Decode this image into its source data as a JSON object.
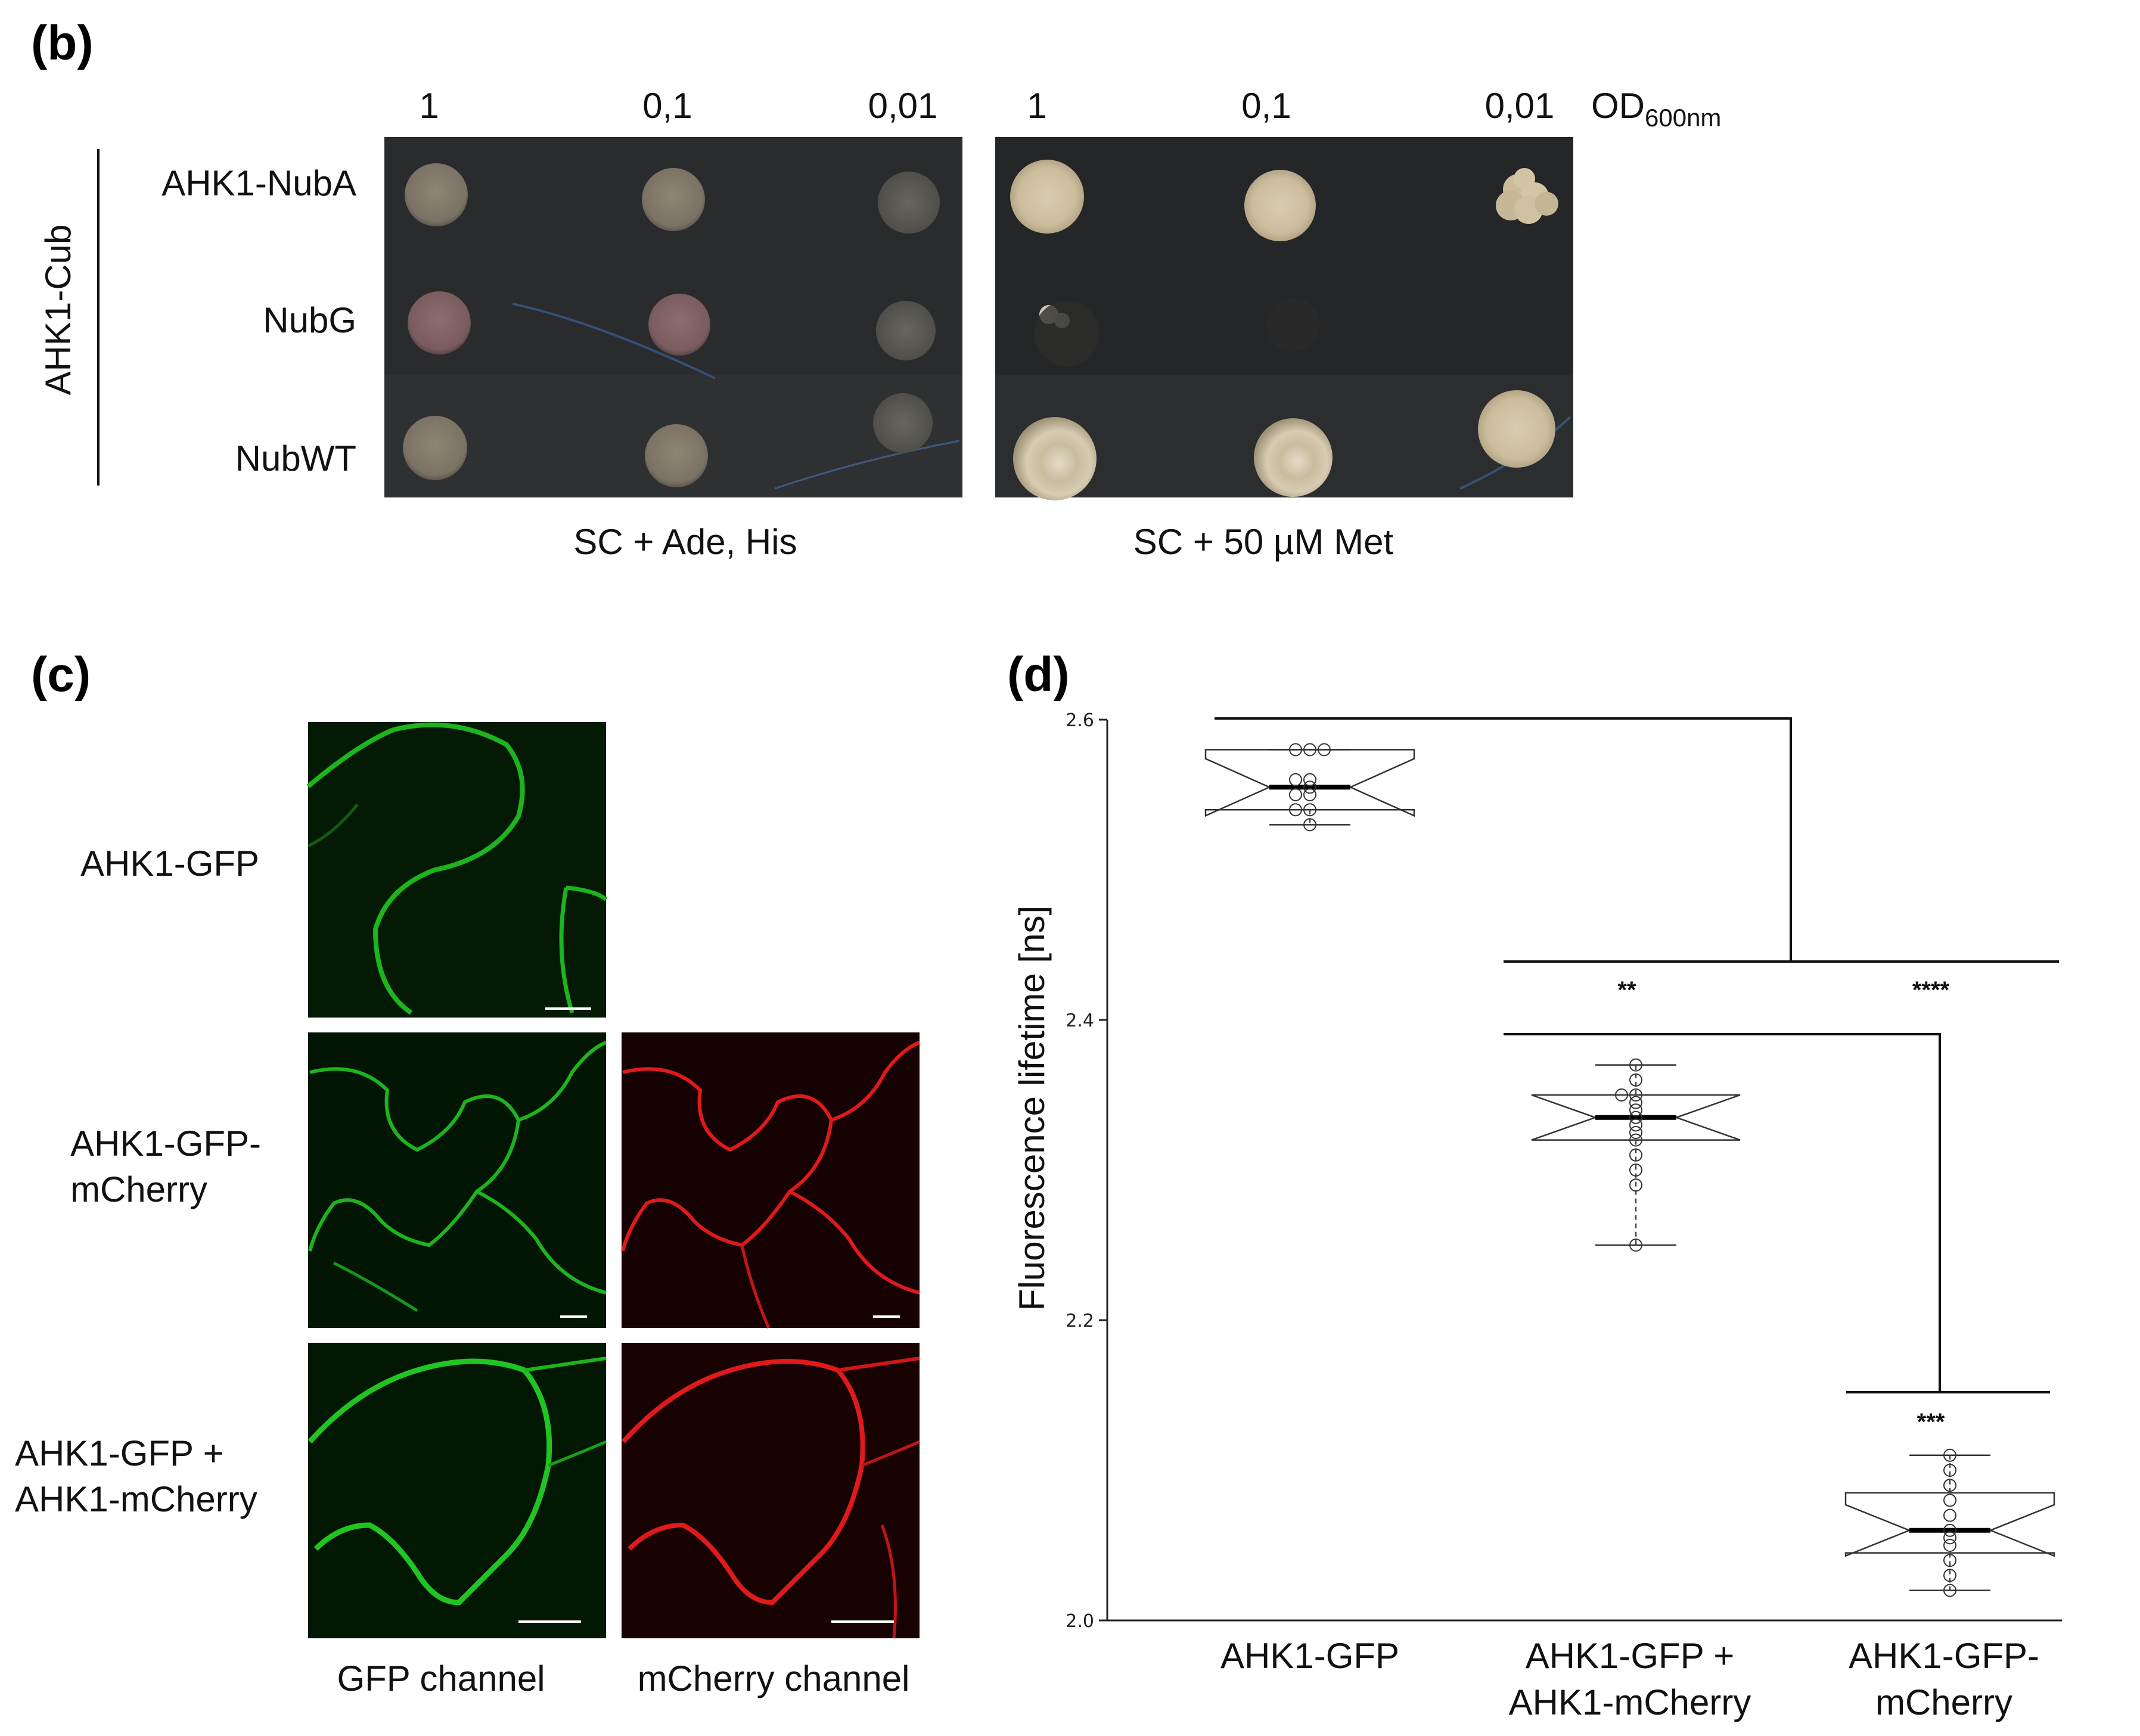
{
  "panel_b": {
    "letter": "(b)",
    "side_label": "AHK1-Cub",
    "dilutions": [
      "1",
      "0,1",
      "0,01"
    ],
    "od_label": "OD",
    "od_sub": "600nm",
    "rows": [
      "AHK1-NubA",
      "NubG",
      "NubWT"
    ],
    "medium_left": "SC + Ade, His",
    "medium_right": "SC + 50 µM Met"
  },
  "panel_c": {
    "letter": "(c)",
    "row1_label": [
      "AHK1-GFP"
    ],
    "row2_label": [
      "AHK1-GFP-",
      "mCherry"
    ],
    "row3_label": [
      "AHK1-GFP +",
      "AHK1-mCherry"
    ],
    "col_gfp": "GFP channel",
    "col_mcherry": "mCherry channel",
    "colors": {
      "gfp": "#1db41d",
      "mcherry": "#e01a1a"
    }
  },
  "panel_d": {
    "letter": "(d)",
    "ylabel": "Fluorescence lifetime [ns]",
    "stars": [
      "**",
      "****",
      "***"
    ]
  },
  "chart_data": {
    "type": "box",
    "xlabel": "",
    "ylabel": "Fluorescence lifetime [ns]",
    "ylim": [
      2.0,
      2.6
    ],
    "yticks": [
      "2.0",
      "2.2",
      "2.4",
      "2.6"
    ],
    "grid": false,
    "categories": [
      [
        "AHK1-GFP"
      ],
      [
        "AHK1-GFP +",
        "AHK1-mCherry"
      ],
      [
        "AHK1-GFP-",
        "mCherry"
      ]
    ],
    "boxes": [
      {
        "median": 2.555,
        "q1": 2.54,
        "q3": 2.58,
        "whisker_low": 2.53,
        "whisker_high": 2.58,
        "notch_low": 2.536,
        "notch_high": 2.574,
        "points": [
          2.58,
          2.58,
          2.58,
          2.56,
          2.56,
          2.555,
          2.55,
          2.55,
          2.54,
          2.54,
          2.53
        ]
      },
      {
        "median": 2.335,
        "q1": 2.32,
        "q3": 2.35,
        "whisker_low": 2.25,
        "whisker_high": 2.37,
        "notch_low": 2.32,
        "notch_high": 2.35,
        "points": [
          2.37,
          2.36,
          2.35,
          2.35,
          2.345,
          2.34,
          2.335,
          2.33,
          2.325,
          2.32,
          2.31,
          2.3,
          2.29,
          2.25
        ]
      },
      {
        "median": 2.06,
        "q1": 2.045,
        "q3": 2.085,
        "whisker_low": 2.02,
        "whisker_high": 2.11,
        "notch_low": 2.043,
        "notch_high": 2.077,
        "points": [
          2.11,
          2.1,
          2.09,
          2.08,
          2.07,
          2.06,
          2.055,
          2.05,
          2.04,
          2.03,
          2.02
        ]
      }
    ],
    "significance": [
      "**",
      "****",
      "***"
    ]
  }
}
